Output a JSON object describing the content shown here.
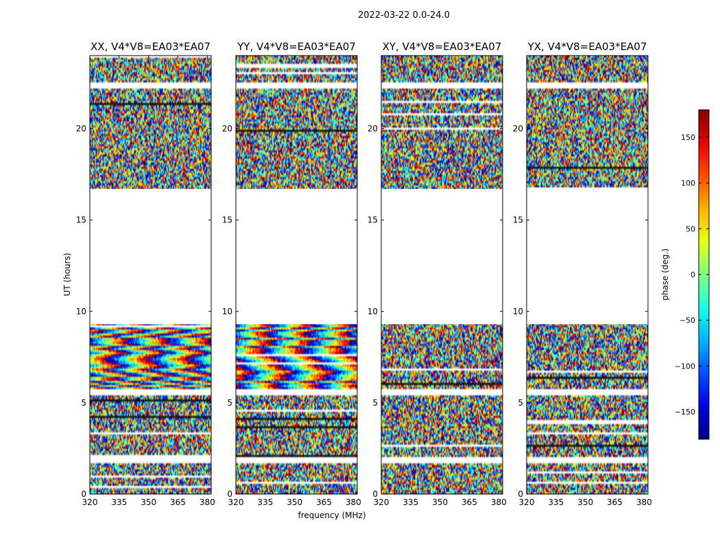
{
  "chart_data": {
    "type": "heatmap",
    "suptitle": "2022-03-22 0.0-24.0",
    "xlabel": "frequency (MHz)",
    "ylabel": "UT (hours)",
    "xlim": [
      320,
      382
    ],
    "ylim": [
      0,
      24
    ],
    "xticks": [
      320,
      335,
      350,
      365,
      380
    ],
    "yticks": [
      0,
      5,
      10,
      15,
      20
    ],
    "gaps_hours": [
      [
        9.3,
        16.7
      ],
      [
        1.7,
        2.0
      ],
      [
        5.4,
        5.7
      ],
      [
        22.2,
        22.5
      ]
    ],
    "colorbar": {
      "label": "phase (deg.)",
      "range": [
        -180,
        180
      ],
      "ticks": [
        150,
        100,
        50,
        0,
        -50,
        -100,
        -150
      ],
      "tick_labels": [
        "150",
        "100",
        "50",
        "0",
        "−50",
        "−100",
        "−150"
      ],
      "colormap": "jet"
    },
    "panels": [
      {
        "title": "XX, V4*V8=EA03*EA07",
        "pol": "XX"
      },
      {
        "title": "YY, V4*V8=EA03*EA07",
        "pol": "YY"
      },
      {
        "title": "XY, V4*V8=EA03*EA07",
        "pol": "XY"
      },
      {
        "title": "YX, V4*V8=EA03*EA07",
        "pol": "YX"
      }
    ]
  }
}
